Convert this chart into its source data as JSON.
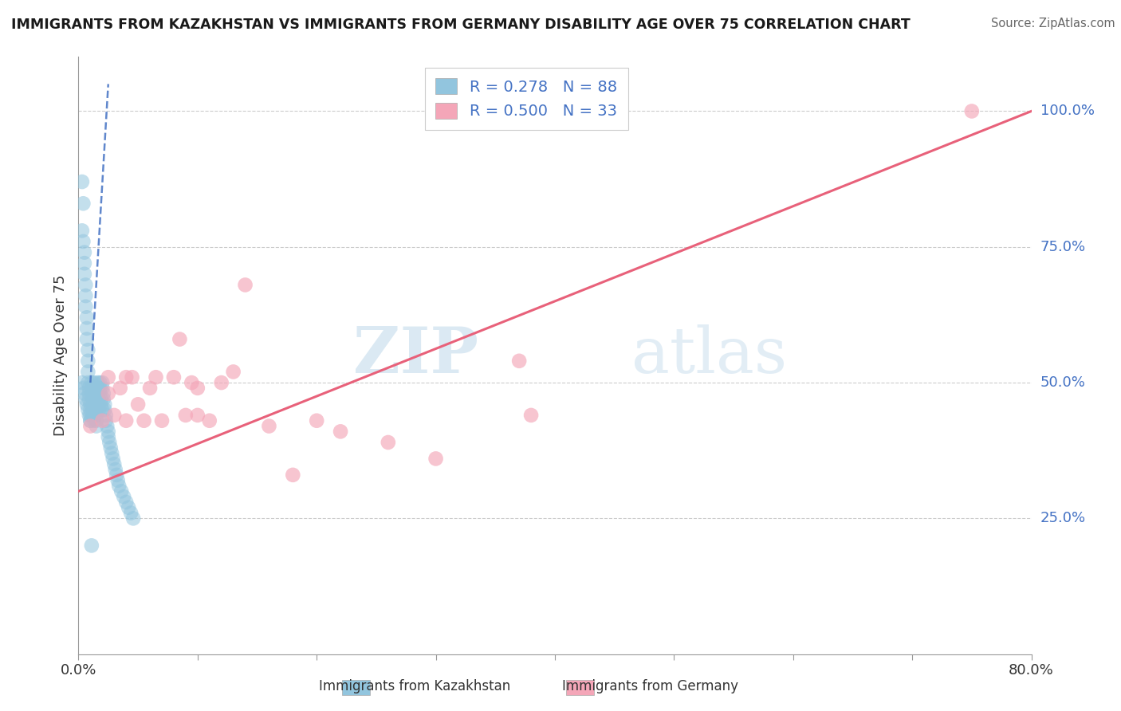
{
  "title": "IMMIGRANTS FROM KAZAKHSTAN VS IMMIGRANTS FROM GERMANY DISABILITY AGE OVER 75 CORRELATION CHART",
  "source": "Source: ZipAtlas.com",
  "ylabel": "Disability Age Over 75",
  "xlabel_blue": "Immigrants from Kazakhstan",
  "xlabel_pink": "Immigrants from Germany",
  "watermark_zip": "ZIP",
  "watermark_atlas": "atlas",
  "xlim": [
    0.0,
    0.8
  ],
  "ylim": [
    0.0,
    1.1
  ],
  "xticks": [
    0.0,
    0.1,
    0.2,
    0.3,
    0.4,
    0.5,
    0.6,
    0.7,
    0.8
  ],
  "yticks": [
    0.25,
    0.5,
    0.75,
    1.0
  ],
  "yticklabels": [
    "25.0%",
    "50.0%",
    "75.0%",
    "100.0%"
  ],
  "R_blue": 0.278,
  "N_blue": 88,
  "R_pink": 0.5,
  "N_pink": 33,
  "blue_color": "#92c5de",
  "pink_color": "#f4a6b8",
  "blue_line_color": "#4472c4",
  "pink_line_color": "#e8617a",
  "background_color": "#ffffff",
  "blue_points_x": [
    0.003,
    0.003,
    0.004,
    0.004,
    0.005,
    0.005,
    0.005,
    0.006,
    0.006,
    0.006,
    0.007,
    0.007,
    0.007,
    0.008,
    0.008,
    0.008,
    0.008,
    0.009,
    0.009,
    0.009,
    0.01,
    0.01,
    0.01,
    0.01,
    0.011,
    0.011,
    0.011,
    0.012,
    0.012,
    0.012,
    0.012,
    0.013,
    0.013,
    0.013,
    0.014,
    0.014,
    0.014,
    0.015,
    0.015,
    0.015,
    0.015,
    0.016,
    0.016,
    0.016,
    0.017,
    0.017,
    0.017,
    0.018,
    0.018,
    0.018,
    0.019,
    0.019,
    0.02,
    0.02,
    0.02,
    0.021,
    0.021,
    0.022,
    0.022,
    0.023,
    0.023,
    0.024,
    0.025,
    0.025,
    0.026,
    0.027,
    0.028,
    0.029,
    0.03,
    0.031,
    0.032,
    0.033,
    0.034,
    0.036,
    0.038,
    0.04,
    0.042,
    0.044,
    0.046,
    0.003,
    0.004,
    0.005,
    0.006,
    0.007,
    0.008,
    0.009,
    0.01,
    0.011
  ],
  "blue_points_y": [
    0.87,
    0.78,
    0.83,
    0.76,
    0.74,
    0.72,
    0.7,
    0.68,
    0.66,
    0.64,
    0.62,
    0.6,
    0.58,
    0.56,
    0.54,
    0.52,
    0.5,
    0.49,
    0.48,
    0.47,
    0.46,
    0.45,
    0.44,
    0.43,
    0.5,
    0.49,
    0.48,
    0.47,
    0.46,
    0.45,
    0.44,
    0.43,
    0.5,
    0.49,
    0.48,
    0.47,
    0.46,
    0.45,
    0.44,
    0.43,
    0.42,
    0.5,
    0.49,
    0.48,
    0.47,
    0.46,
    0.45,
    0.5,
    0.49,
    0.48,
    0.47,
    0.46,
    0.45,
    0.5,
    0.49,
    0.48,
    0.47,
    0.46,
    0.45,
    0.44,
    0.43,
    0.42,
    0.41,
    0.4,
    0.39,
    0.38,
    0.37,
    0.36,
    0.35,
    0.34,
    0.33,
    0.32,
    0.31,
    0.3,
    0.29,
    0.28,
    0.27,
    0.26,
    0.25,
    0.5,
    0.49,
    0.48,
    0.47,
    0.46,
    0.45,
    0.44,
    0.43,
    0.2
  ],
  "pink_points_x": [
    0.01,
    0.02,
    0.025,
    0.025,
    0.03,
    0.035,
    0.04,
    0.04,
    0.045,
    0.05,
    0.055,
    0.06,
    0.065,
    0.07,
    0.08,
    0.085,
    0.09,
    0.095,
    0.1,
    0.1,
    0.11,
    0.12,
    0.13,
    0.14,
    0.16,
    0.18,
    0.2,
    0.22,
    0.26,
    0.3,
    0.37,
    0.38,
    0.75
  ],
  "pink_points_y": [
    0.42,
    0.43,
    0.48,
    0.51,
    0.44,
    0.49,
    0.43,
    0.51,
    0.51,
    0.46,
    0.43,
    0.49,
    0.51,
    0.43,
    0.51,
    0.58,
    0.44,
    0.5,
    0.49,
    0.44,
    0.43,
    0.5,
    0.52,
    0.68,
    0.42,
    0.33,
    0.43,
    0.41,
    0.39,
    0.36,
    0.54,
    0.44,
    1.0
  ],
  "pink_line_x0": 0.0,
  "pink_line_y0": 0.3,
  "pink_line_x1": 0.8,
  "pink_line_y1": 1.0,
  "blue_line_x0": 0.01,
  "blue_line_y0": 0.5,
  "blue_line_x1": 0.025,
  "blue_line_y1": 1.05
}
